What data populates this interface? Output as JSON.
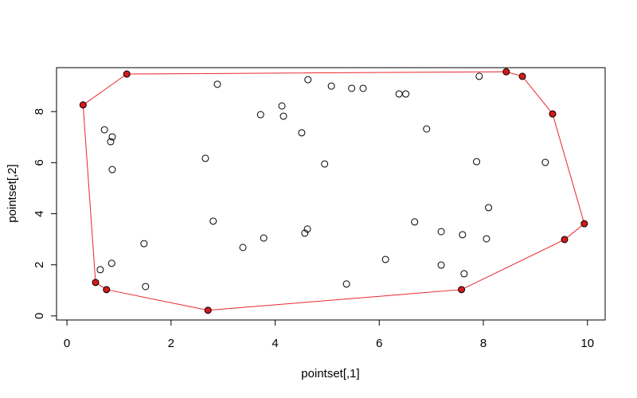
{
  "chart_data": {
    "type": "scatter",
    "xlabel": "pointset[,1]",
    "ylabel": "pointset[,2]",
    "xlim": [
      -0.2,
      10.34
    ],
    "ylim": [
      -0.16,
      9.72
    ],
    "xticks": [
      0,
      2,
      4,
      6,
      8,
      10
    ],
    "yticks": [
      0,
      2,
      4,
      6,
      8
    ],
    "series": [
      {
        "color": "#000000",
        "fill": "none",
        "line": false,
        "x": [
          2.89,
          4.63,
          5.08,
          5.47,
          5.69,
          6.38,
          6.51,
          7.92,
          4.13,
          3.72,
          4.16,
          4.51,
          6.91,
          0.72,
          0.87,
          0.84,
          0.87,
          2.66,
          4.95,
          7.87,
          9.19,
          8.1,
          2.81,
          6.68,
          4.62,
          4.57,
          3.78,
          7.19,
          7.6,
          8.06,
          1.48,
          3.38,
          6.12,
          0.86,
          7.19,
          0.64,
          7.63,
          5.37,
          1.51
        ],
        "y": [
          9.07,
          9.25,
          9.0,
          8.91,
          8.91,
          8.69,
          8.69,
          9.38,
          8.22,
          7.88,
          7.82,
          7.17,
          7.32,
          7.29,
          7.01,
          6.82,
          5.73,
          6.17,
          5.95,
          6.04,
          6.01,
          4.24,
          3.71,
          3.68,
          3.4,
          3.24,
          3.05,
          3.3,
          3.18,
          3.02,
          2.83,
          2.68,
          2.21,
          2.06,
          1.99,
          1.81,
          1.65,
          1.25,
          1.15
        ]
      },
      {
        "color": "#e8262a",
        "fill": "#d7191c",
        "line": true,
        "x": [
          0.31,
          1.15,
          8.44,
          8.75,
          9.33,
          9.94,
          9.56,
          7.58,
          2.71,
          0.76,
          0.55
        ],
        "y": [
          8.26,
          9.47,
          9.56,
          9.38,
          7.91,
          3.61,
          2.99,
          1.03,
          0.22,
          1.03,
          1.31
        ]
      }
    ]
  }
}
